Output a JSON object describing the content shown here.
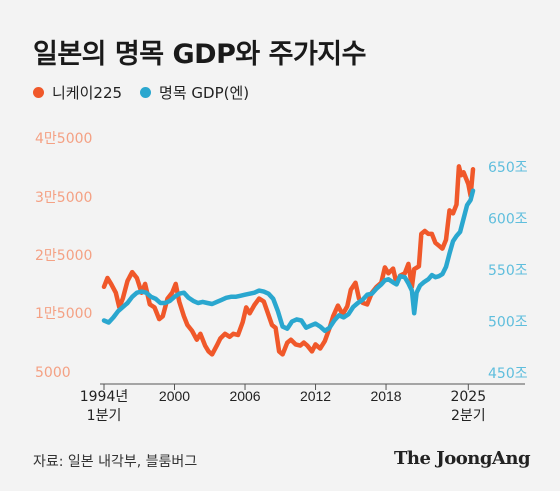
{
  "title": "일본의 명목 GDP와 주가지수",
  "source": "자료: 일본 내각부, 블룸버그",
  "brand": "The JoongAng",
  "colors": {
    "nikkei": "#f0582a",
    "gdp": "#2aa7cf",
    "left_axis_text": "#f4a184",
    "right_axis_text": "#5fbedd"
  },
  "chart_data": {
    "type": "line",
    "x_label_first": [
      "1994년",
      "1분기"
    ],
    "x_label_last": [
      "2025",
      "2분기"
    ],
    "x_ticks": [
      {
        "x": 1994,
        "label": "1994년"
      },
      {
        "x": 2000,
        "label": "2000"
      },
      {
        "x": 2006,
        "label": "2006"
      },
      {
        "x": 2012,
        "label": "2012"
      },
      {
        "x": 2018,
        "label": "2018"
      },
      {
        "x": 2025,
        "label": "2025"
      }
    ],
    "xlim": [
      1994,
      2025.4
    ],
    "left_axis": {
      "ylim": [
        5000,
        40000
      ],
      "ticks": [
        {
          "v": 5000,
          "label": "5000"
        },
        {
          "v": 15000,
          "label": "1만5000"
        },
        {
          "v": 25000,
          "label": "2만5000"
        },
        {
          "v": 35000,
          "label": "3만5000"
        },
        {
          "v": 45000,
          "label": "4만5000"
        }
      ]
    },
    "right_axis": {
      "ylim": [
        450,
        650
      ],
      "ticks": [
        {
          "v": 450,
          "label": "450조"
        },
        {
          "v": 500,
          "label": "500조"
        },
        {
          "v": 550,
          "label": "550조"
        },
        {
          "v": 600,
          "label": "600조"
        },
        {
          "v": 650,
          "label": "650조"
        }
      ]
    },
    "series": [
      {
        "name": "니케이225",
        "axis": "left",
        "points": [
          [
            1994.0,
            19500
          ],
          [
            1994.3,
            21000
          ],
          [
            1994.6,
            20000
          ],
          [
            1995.0,
            18500
          ],
          [
            1995.3,
            16000
          ],
          [
            1995.6,
            17500
          ],
          [
            1996.0,
            20500
          ],
          [
            1996.4,
            22000
          ],
          [
            1996.8,
            21000
          ],
          [
            1997.2,
            18500
          ],
          [
            1997.5,
            20000
          ],
          [
            1997.9,
            16500
          ],
          [
            1998.3,
            16000
          ],
          [
            1998.7,
            14000
          ],
          [
            1999.0,
            14500
          ],
          [
            1999.4,
            17500
          ],
          [
            1999.8,
            18500
          ],
          [
            2000.1,
            20000
          ],
          [
            2000.4,
            17000
          ],
          [
            2000.8,
            14500
          ],
          [
            2001.1,
            13000
          ],
          [
            2001.5,
            12000
          ],
          [
            2001.9,
            10500
          ],
          [
            2002.2,
            11500
          ],
          [
            2002.6,
            9500
          ],
          [
            2002.9,
            8500
          ],
          [
            2003.2,
            8000
          ],
          [
            2003.6,
            9500
          ],
          [
            2003.9,
            10700
          ],
          [
            2004.3,
            11500
          ],
          [
            2004.7,
            11000
          ],
          [
            2005.0,
            11500
          ],
          [
            2005.4,
            11300
          ],
          [
            2005.8,
            13500
          ],
          [
            2006.1,
            16000
          ],
          [
            2006.4,
            15000
          ],
          [
            2006.8,
            16400
          ],
          [
            2007.2,
            17500
          ],
          [
            2007.6,
            17000
          ],
          [
            2007.9,
            15300
          ],
          [
            2008.3,
            13000
          ],
          [
            2008.6,
            12500
          ],
          [
            2008.9,
            8500
          ],
          [
            2009.2,
            8000
          ],
          [
            2009.6,
            10000
          ],
          [
            2009.9,
            10500
          ],
          [
            2010.3,
            9700
          ],
          [
            2010.7,
            9500
          ],
          [
            2011.0,
            10000
          ],
          [
            2011.3,
            9500
          ],
          [
            2011.7,
            8500
          ],
          [
            2012.0,
            9700
          ],
          [
            2012.4,
            9000
          ],
          [
            2012.8,
            10300
          ],
          [
            2013.2,
            12500
          ],
          [
            2013.5,
            14500
          ],
          [
            2013.9,
            16300
          ],
          [
            2014.3,
            14800
          ],
          [
            2014.7,
            16200
          ],
          [
            2015.0,
            19000
          ],
          [
            2015.4,
            20200
          ],
          [
            2015.7,
            17500
          ],
          [
            2016.0,
            16800
          ],
          [
            2016.4,
            16500
          ],
          [
            2016.8,
            18500
          ],
          [
            2017.2,
            19500
          ],
          [
            2017.6,
            20200
          ],
          [
            2017.9,
            22800
          ],
          [
            2018.2,
            21800
          ],
          [
            2018.6,
            22600
          ],
          [
            2018.9,
            20000
          ],
          [
            2019.2,
            21400
          ],
          [
            2019.6,
            21800
          ],
          [
            2019.9,
            23400
          ],
          [
            2020.2,
            19500
          ],
          [
            2020.4,
            22500
          ],
          [
            2020.8,
            23000
          ],
          [
            2021.0,
            28500
          ],
          [
            2021.3,
            29000
          ],
          [
            2021.6,
            28500
          ],
          [
            2021.9,
            28500
          ],
          [
            2022.2,
            27000
          ],
          [
            2022.5,
            26500
          ],
          [
            2022.8,
            26000
          ],
          [
            2023.1,
            27500
          ],
          [
            2023.4,
            32500
          ],
          [
            2023.7,
            32000
          ],
          [
            2024.0,
            33500
          ],
          [
            2024.2,
            40000
          ],
          [
            2024.4,
            38500
          ],
          [
            2024.6,
            39000
          ],
          [
            2024.8,
            38000
          ],
          [
            2025.0,
            37000
          ],
          [
            2025.2,
            35000
          ],
          [
            2025.4,
            39500
          ]
        ]
      },
      {
        "name": "명목 GDP(엔)",
        "axis": "right",
        "points": [
          [
            1994.0,
            501
          ],
          [
            1994.4,
            499
          ],
          [
            1994.8,
            504
          ],
          [
            1995.2,
            510
          ],
          [
            1995.6,
            514
          ],
          [
            1996.0,
            518
          ],
          [
            1996.4,
            524
          ],
          [
            1996.8,
            528
          ],
          [
            1997.2,
            529
          ],
          [
            1997.6,
            528
          ],
          [
            1998.0,
            524
          ],
          [
            1998.4,
            522
          ],
          [
            1998.8,
            518
          ],
          [
            1999.2,
            518
          ],
          [
            1999.6,
            520
          ],
          [
            2000.0,
            524
          ],
          [
            2000.4,
            527
          ],
          [
            2000.8,
            528
          ],
          [
            2001.2,
            523
          ],
          [
            2001.6,
            520
          ],
          [
            2002.0,
            518
          ],
          [
            2002.4,
            519
          ],
          [
            2002.8,
            518
          ],
          [
            2003.2,
            517
          ],
          [
            2003.6,
            519
          ],
          [
            2004.0,
            521
          ],
          [
            2004.4,
            523
          ],
          [
            2004.8,
            524
          ],
          [
            2005.2,
            524
          ],
          [
            2005.6,
            525
          ],
          [
            2006.0,
            526
          ],
          [
            2006.4,
            527
          ],
          [
            2006.8,
            528
          ],
          [
            2007.2,
            530
          ],
          [
            2007.6,
            529
          ],
          [
            2008.0,
            527
          ],
          [
            2008.4,
            522
          ],
          [
            2008.8,
            510
          ],
          [
            2009.2,
            495
          ],
          [
            2009.6,
            493
          ],
          [
            2010.0,
            500
          ],
          [
            2010.4,
            502
          ],
          [
            2010.8,
            501
          ],
          [
            2011.2,
            494
          ],
          [
            2011.6,
            496
          ],
          [
            2012.0,
            498
          ],
          [
            2012.4,
            495
          ],
          [
            2012.8,
            491
          ],
          [
            2013.2,
            494
          ],
          [
            2013.6,
            501
          ],
          [
            2014.0,
            506
          ],
          [
            2014.4,
            504
          ],
          [
            2014.8,
            507
          ],
          [
            2015.2,
            514
          ],
          [
            2015.6,
            518
          ],
          [
            2016.0,
            521
          ],
          [
            2016.4,
            526
          ],
          [
            2016.8,
            527
          ],
          [
            2017.2,
            532
          ],
          [
            2017.6,
            536
          ],
          [
            2017.9,
            540
          ],
          [
            2018.2,
            541
          ],
          [
            2018.6,
            538
          ],
          [
            2018.9,
            536
          ],
          [
            2019.2,
            544
          ],
          [
            2019.6,
            543
          ],
          [
            2019.9,
            537
          ],
          [
            2020.2,
            530
          ],
          [
            2020.4,
            508
          ],
          [
            2020.6,
            528
          ],
          [
            2020.9,
            535
          ],
          [
            2021.2,
            538
          ],
          [
            2021.6,
            541
          ],
          [
            2021.9,
            545
          ],
          [
            2022.2,
            543
          ],
          [
            2022.5,
            544
          ],
          [
            2022.8,
            546
          ],
          [
            2023.1,
            553
          ],
          [
            2023.4,
            566
          ],
          [
            2023.7,
            578
          ],
          [
            2024.0,
            583
          ],
          [
            2024.3,
            587
          ],
          [
            2024.6,
            600
          ],
          [
            2024.9,
            613
          ],
          [
            2025.2,
            618
          ],
          [
            2025.4,
            627
          ]
        ]
      }
    ]
  }
}
